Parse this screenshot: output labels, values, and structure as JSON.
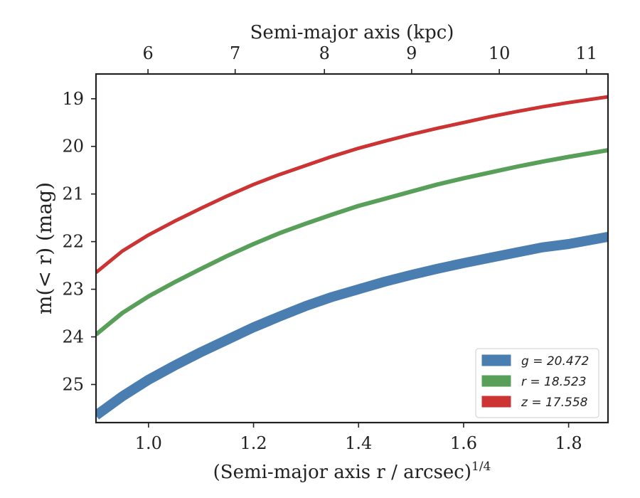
{
  "chart_data": {
    "type": "line",
    "xlabel": "(Semi-major axis r / arcsec)",
    "xlabel_superscript": "1/4",
    "ylabel": "m(< r) (mag)",
    "top_xlabel": "Semi-major axis (kpc)",
    "xlim": [
      0.9,
      1.875
    ],
    "ylim": [
      25.8,
      18.48
    ],
    "y_inverted": true,
    "x_ticks": [
      1.0,
      1.2,
      1.4,
      1.6,
      1.8
    ],
    "x_tick_labels": [
      "1.0",
      "1.2",
      "1.4",
      "1.6",
      "1.8"
    ],
    "y_ticks": [
      19,
      20,
      21,
      22,
      23,
      24,
      25
    ],
    "y_tick_labels": [
      "19",
      "20",
      "21",
      "22",
      "23",
      "24",
      "25"
    ],
    "top_ticks": [
      0.999,
      1.165,
      1.335,
      1.501,
      1.668,
      1.834
    ],
    "top_tick_labels": [
      "6",
      "7",
      "8",
      "9",
      "10",
      "11"
    ],
    "grid": false,
    "legend_position": "bottom-right",
    "x": [
      0.9,
      0.95,
      1.0,
      1.05,
      1.1,
      1.15,
      1.2,
      1.25,
      1.3,
      1.35,
      1.4,
      1.45,
      1.5,
      1.55,
      1.6,
      1.65,
      1.7,
      1.75,
      1.8,
      1.875
    ],
    "series": [
      {
        "name": "g = 20.472",
        "legend_label": "g = 20.472",
        "color": "#4a7eb0",
        "width": 14,
        "values": [
          25.65,
          25.25,
          24.9,
          24.6,
          24.32,
          24.06,
          23.8,
          23.57,
          23.35,
          23.16,
          23.0,
          22.84,
          22.7,
          22.57,
          22.45,
          22.34,
          22.23,
          22.12,
          22.05,
          21.9
        ]
      },
      {
        "name": "r = 18.523",
        "legend_label": "r = 18.523",
        "color": "#58a05a",
        "width": 6,
        "values": [
          23.95,
          23.5,
          23.15,
          22.85,
          22.57,
          22.3,
          22.05,
          21.82,
          21.62,
          21.43,
          21.25,
          21.1,
          20.95,
          20.8,
          20.67,
          20.55,
          20.43,
          20.32,
          20.22,
          20.08
        ]
      },
      {
        "name": "z = 17.558",
        "legend_label": "z = 17.558",
        "color": "#cc3333",
        "width": 5,
        "values": [
          22.65,
          22.2,
          21.86,
          21.57,
          21.3,
          21.04,
          20.8,
          20.59,
          20.4,
          20.21,
          20.04,
          19.89,
          19.75,
          19.62,
          19.5,
          19.38,
          19.27,
          19.17,
          19.08,
          18.96
        ]
      }
    ]
  }
}
